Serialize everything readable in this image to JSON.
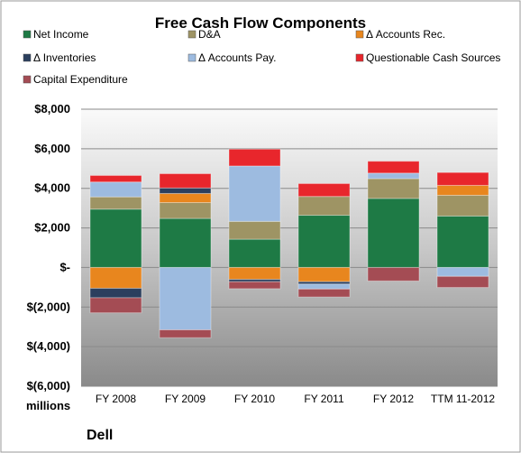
{
  "chart_data": {
    "type": "bar",
    "stacked": true,
    "title": "Free Cash Flow Components",
    "unit_label": "millions",
    "company": "Dell",
    "categories": [
      "FY 2008",
      "FY 2009",
      "FY 2010",
      "FY 2011",
      "FY 2012",
      "TTM 11-2012"
    ],
    "ylim": [
      -6000,
      8000
    ],
    "yticks": [
      8000,
      6000,
      4000,
      2000,
      0,
      -2000,
      -4000,
      -6000
    ],
    "ytick_labels": [
      "$8,000",
      "$6,000",
      "$4,000",
      "$2,000",
      "$-",
      "$(2,000)",
      "$(4,000)",
      "$(6,000)"
    ],
    "grid": true,
    "legend_position": "top",
    "series": [
      {
        "name": "Net Income",
        "color": "#1e7a45",
        "values": [
          2950,
          2480,
          1430,
          2640,
          3490,
          2600
        ]
      },
      {
        "name": "D&A",
        "color": "#9e9464",
        "values": [
          620,
          800,
          900,
          950,
          1000,
          1050
        ]
      },
      {
        "name": "Δ Accounts Rec.",
        "color": "#e8861e",
        "values": [
          -1050,
          460,
          -600,
          -720,
          0,
          500
        ]
      },
      {
        "name": "Δ Inventories",
        "color": "#2b3f5e",
        "values": [
          -480,
          280,
          -120,
          -120,
          0,
          0
        ]
      },
      {
        "name": "Δ Accounts Pay.",
        "color": "#9dbbe0",
        "values": [
          750,
          -3150,
          2800,
          -250,
          280,
          -450
        ]
      },
      {
        "name": "Questionable Cash Sources",
        "color": "#e8262c",
        "values": [
          330,
          720,
          850,
          650,
          600,
          650
        ]
      },
      {
        "name": "Capital Expenditure",
        "color": "#a44c54",
        "values": [
          -760,
          -400,
          -350,
          -400,
          -680,
          -560
        ]
      }
    ]
  }
}
